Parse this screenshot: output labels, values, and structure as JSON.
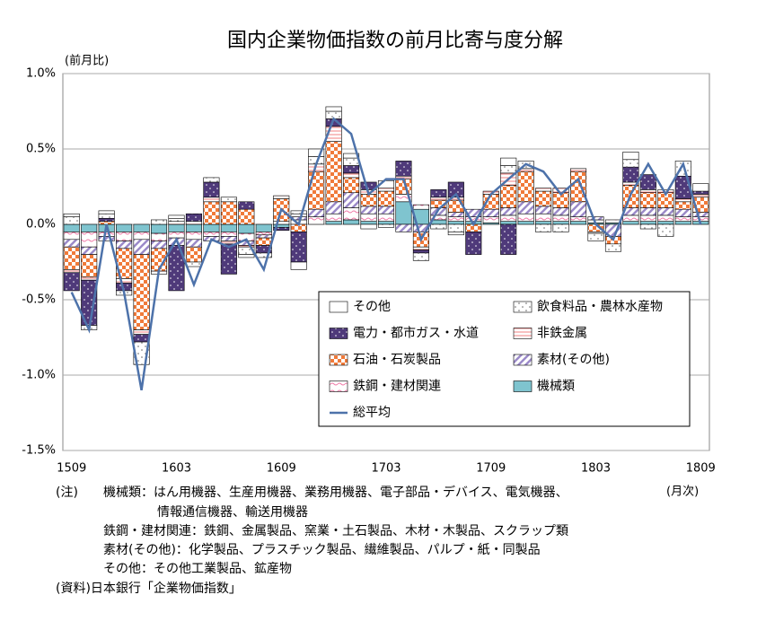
{
  "chart_data": {
    "type": "bar",
    "stacked": true,
    "title": "国内企業物価指数の前月比寄与度分解",
    "y_label": "(前月比)",
    "x_label": "(月次)",
    "categories": [
      "1509",
      null,
      null,
      null,
      null,
      null,
      "1603",
      null,
      null,
      null,
      null,
      null,
      "1609",
      null,
      null,
      null,
      null,
      null,
      "1703",
      null,
      null,
      null,
      null,
      null,
      "1709",
      null,
      null,
      null,
      null,
      null,
      "1803",
      null,
      null,
      null,
      null,
      null,
      "1809"
    ],
    "ylim": [
      -1.5,
      1.0
    ],
    "yticks": [
      {
        "value": -1.5,
        "label": "-1.5%"
      },
      {
        "value": -1.0,
        "label": "-1.0%"
      },
      {
        "value": -0.5,
        "label": "-0.5%"
      },
      {
        "value": 0,
        "label": "0.0%"
      },
      {
        "value": 0.5,
        "label": "0.5%"
      },
      {
        "value": 1.0,
        "label": "1.0%"
      }
    ],
    "grid": true,
    "legend": "lower right",
    "series": [
      {
        "name": "機械類",
        "color": "#7fc4cf",
        "values": [
          -0.05,
          -0.05,
          -0.05,
          -0.05,
          -0.05,
          -0.06,
          -0.05,
          -0.05,
          -0.05,
          -0.05,
          -0.06,
          -0.05,
          -0.02,
          0.0,
          0.0,
          0.02,
          0.03,
          0.02,
          0.02,
          0.15,
          0.1,
          0.03,
          0.02,
          0.02,
          0.01,
          0.02,
          0.02,
          0.02,
          0.02,
          0.02,
          0.01,
          0.01,
          0.02,
          0.02,
          0.02,
          0.02,
          0.02
        ]
      },
      {
        "name": "鉄鋼・建材関連",
        "color": "#f07aa8",
        "values": [
          -0.05,
          -0.1,
          -0.03,
          -0.06,
          -0.05,
          -0.05,
          -0.04,
          -0.05,
          -0.03,
          -0.03,
          -0.05,
          -0.02,
          0.02,
          0.03,
          0.05,
          0.05,
          0.08,
          0.05,
          0.05,
          0.05,
          0.03,
          0.03,
          0.03,
          0.03,
          0.04,
          0.04,
          0.05,
          0.05,
          0.04,
          0.03,
          0.02,
          0.02,
          0.04,
          0.04,
          0.04,
          0.03,
          0.03
        ]
      },
      {
        "name": "素材(その他)",
        "color": "#9b8ac9",
        "values": [
          -0.05,
          -0.05,
          -0.03,
          -0.05,
          -0.1,
          -0.05,
          -0.05,
          -0.05,
          -0.03,
          -0.03,
          -0.03,
          -0.02,
          0.0,
          0.02,
          0.05,
          0.08,
          0.1,
          0.05,
          0.05,
          -0.05,
          -0.05,
          0.05,
          0.03,
          0.05,
          0.05,
          0.05,
          0.08,
          0.05,
          0.05,
          0.1,
          0.02,
          -0.08,
          0.05,
          0.05,
          0.05,
          0.05,
          0.03
        ]
      },
      {
        "name": "石油・石炭製品",
        "color": "#f07a3a",
        "values": [
          -0.15,
          -0.15,
          0.02,
          -0.2,
          -0.5,
          -0.15,
          0.0,
          -0.1,
          0.15,
          0.15,
          0.1,
          -0.05,
          0.15,
          -0.05,
          0.25,
          0.4,
          0.1,
          0.08,
          0.1,
          0.1,
          -0.1,
          0.05,
          0.08,
          -0.05,
          0.1,
          0.15,
          0.2,
          0.1,
          0.1,
          0.2,
          -0.05,
          -0.05,
          0.15,
          0.1,
          0.1,
          0.05,
          0.1
        ]
      },
      {
        "name": "非鉄金属",
        "color": "#f08080",
        "values": [
          -0.02,
          -0.02,
          0.0,
          -0.03,
          -0.03,
          -0.02,
          0.02,
          0.02,
          0.03,
          -0.02,
          -0.01,
          0.0,
          0.02,
          0.02,
          0.05,
          0.1,
          0.03,
          0.03,
          0.02,
          0.02,
          -0.02,
          0.02,
          0.02,
          0.0,
          0.02,
          0.08,
          0.02,
          0.02,
          0.03,
          0.02,
          -0.01,
          0.0,
          0.02,
          0.02,
          0.02,
          0.02,
          0.02
        ]
      },
      {
        "name": "電力・都市ガス・水道",
        "color": "#4f3a7a",
        "values": [
          -0.12,
          -0.3,
          0.02,
          -0.05,
          -0.05,
          0.0,
          -0.3,
          0.05,
          0.1,
          -0.2,
          0.05,
          -0.05,
          -0.02,
          -0.2,
          0.0,
          0.05,
          0.05,
          0.05,
          0.0,
          0.1,
          -0.02,
          0.05,
          0.1,
          -0.15,
          0.0,
          -0.2,
          0.0,
          0.0,
          0.0,
          0.0,
          0.0,
          0.0,
          0.1,
          0.1,
          0.0,
          0.15,
          0.02
        ]
      },
      {
        "name": "飲食料品・農林水産物",
        "color": "#666666",
        "values": [
          0.05,
          -0.03,
          0.03,
          -0.03,
          -0.15,
          0.03,
          0.02,
          -0.03,
          0.03,
          0.03,
          -0.05,
          -0.03,
          0.0,
          0.02,
          0.05,
          0.05,
          0.05,
          0.0,
          -0.02,
          0.0,
          -0.05,
          -0.03,
          -0.05,
          0.0,
          0.0,
          0.05,
          0.05,
          -0.05,
          -0.05,
          0.0,
          -0.05,
          -0.05,
          0.05,
          -0.03,
          -0.08,
          0.1,
          0.0
        ]
      },
      {
        "name": "その他",
        "color": "#ffffff",
        "values": [
          0.02,
          0.0,
          0.02,
          0.0,
          0.0,
          0.0,
          0.02,
          0.0,
          0.0,
          0.0,
          -0.02,
          0.0,
          0.0,
          -0.05,
          0.05,
          0.03,
          0.03,
          -0.03,
          0.05,
          0.0,
          0.0,
          0.0,
          -0.02,
          0.0,
          0.0,
          0.05,
          0.0,
          0.0,
          0.0,
          0.0,
          0.0,
          0.0,
          0.05,
          0.0,
          0.0,
          0.0,
          0.05
        ]
      },
      {
        "name": "総平均",
        "type": "line",
        "color": "#4d72aa",
        "values": [
          -0.45,
          -0.7,
          0.0,
          -0.45,
          -1.1,
          -0.3,
          -0.1,
          -0.4,
          -0.1,
          -0.15,
          -0.1,
          -0.3,
          0.1,
          0.0,
          0.4,
          0.7,
          0.6,
          0.2,
          0.3,
          0.3,
          -0.1,
          0.1,
          0.2,
          0.0,
          0.2,
          0.3,
          0.4,
          0.35,
          0.2,
          0.3,
          0.0,
          -0.1,
          0.2,
          0.4,
          0.2,
          0.4,
          0.0
        ]
      }
    ],
    "notes": [
      "(注)",
      "機械類：はん用機器、生産用機器、業務用機器、電子部品・デバイス、電気機器、",
      "情報通信機器、輸送用機器",
      "鉄鋼・建材関連：鉄鋼、金属製品、窯業・土石製品、木材・木製品、スクラップ類",
      "素材(その他)：化学製品、プラスチック製品、繊維製品、パルプ・紙・同製品",
      "その他：その他工業製品、鉱産物",
      "(資料)日本銀行「企業物価指数」"
    ]
  }
}
